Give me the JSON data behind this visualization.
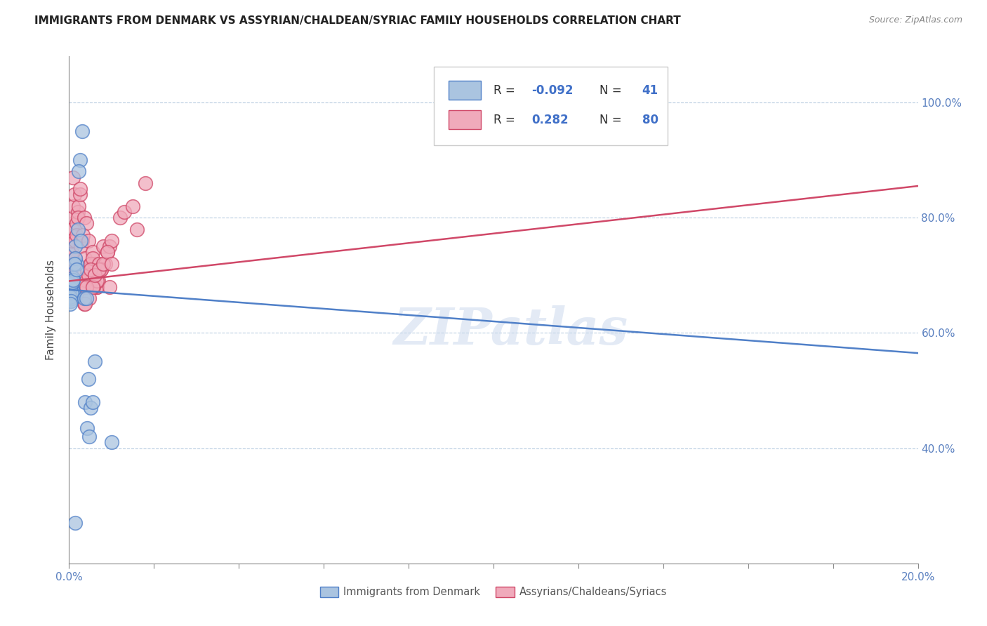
{
  "title": "IMMIGRANTS FROM DENMARK VS ASSYRIAN/CHALDEAN/SYRIAC FAMILY HOUSEHOLDS CORRELATION CHART",
  "source": "Source: ZipAtlas.com",
  "ylabel": "Family Households",
  "ylabel_right_ticks": [
    "40.0%",
    "60.0%",
    "80.0%",
    "100.0%"
  ],
  "ylabel_right_vals": [
    0.4,
    0.6,
    0.8,
    1.0
  ],
  "legend_label1": "Immigrants from Denmark",
  "legend_label2": "Assyrians/Chaldeans/Syriacs",
  "blue_color": "#aac4e0",
  "pink_color": "#f0aabb",
  "blue_line_color": "#5080c8",
  "pink_line_color": "#d04868",
  "watermark_text": "ZIPatlas",
  "blue_scatter_x": [
    0.0008,
    0.001,
    0.0005,
    0.0006,
    0.0004,
    0.0003,
    0.0008,
    0.0012,
    0.001,
    0.0005,
    0.0007,
    0.0009,
    0.0005,
    0.0003,
    0.0002,
    0.0006,
    0.0008,
    0.001,
    0.0004,
    0.0003,
    0.0015,
    0.002,
    0.0018,
    0.0025,
    0.0022,
    0.003,
    0.0028,
    0.0015,
    0.0012,
    0.0018,
    0.0035,
    0.004,
    0.0045,
    0.0038,
    0.005,
    0.0042,
    0.0055,
    0.0048,
    0.006,
    0.0015,
    0.01
  ],
  "blue_scatter_y": [
    0.68,
    0.67,
    0.665,
    0.672,
    0.66,
    0.668,
    0.675,
    0.663,
    0.671,
    0.659,
    0.69,
    0.695,
    0.685,
    0.678,
    0.662,
    0.67,
    0.688,
    0.692,
    0.655,
    0.65,
    0.75,
    0.78,
    0.72,
    0.9,
    0.88,
    0.95,
    0.76,
    0.73,
    0.72,
    0.71,
    0.66,
    0.66,
    0.52,
    0.48,
    0.47,
    0.435,
    0.48,
    0.42,
    0.55,
    0.27,
    0.41
  ],
  "pink_scatter_x": [
    0.0003,
    0.0005,
    0.0007,
    0.0004,
    0.0006,
    0.0008,
    0.0005,
    0.0003,
    0.0006,
    0.0009,
    0.0004,
    0.0007,
    0.0008,
    0.0005,
    0.0003,
    0.001,
    0.0012,
    0.0008,
    0.0006,
    0.0004,
    0.0015,
    0.0018,
    0.002,
    0.0022,
    0.0025,
    0.0015,
    0.0018,
    0.0012,
    0.002,
    0.0025,
    0.003,
    0.0035,
    0.0028,
    0.004,
    0.0032,
    0.0045,
    0.0038,
    0.005,
    0.0042,
    0.0055,
    0.0048,
    0.006,
    0.0052,
    0.0065,
    0.0035,
    0.004,
    0.0045,
    0.005,
    0.003,
    0.0035,
    0.0055,
    0.006,
    0.0065,
    0.007,
    0.0075,
    0.008,
    0.0068,
    0.0058,
    0.0048,
    0.0038,
    0.009,
    0.0085,
    0.0075,
    0.0065,
    0.0095,
    0.01,
    0.0095,
    0.004,
    0.005,
    0.0055,
    0.006,
    0.007,
    0.008,
    0.009,
    0.01,
    0.012,
    0.013,
    0.015,
    0.016,
    0.018
  ],
  "pink_scatter_y": [
    0.68,
    0.72,
    0.76,
    0.7,
    0.74,
    0.8,
    0.68,
    0.66,
    0.74,
    0.82,
    0.7,
    0.76,
    0.78,
    0.72,
    0.66,
    0.87,
    0.84,
    0.78,
    0.76,
    0.7,
    0.76,
    0.79,
    0.81,
    0.82,
    0.84,
    0.73,
    0.77,
    0.71,
    0.8,
    0.85,
    0.76,
    0.8,
    0.75,
    0.79,
    0.77,
    0.76,
    0.73,
    0.72,
    0.71,
    0.74,
    0.7,
    0.72,
    0.69,
    0.68,
    0.67,
    0.69,
    0.7,
    0.72,
    0.68,
    0.65,
    0.73,
    0.7,
    0.68,
    0.72,
    0.71,
    0.75,
    0.69,
    0.68,
    0.66,
    0.65,
    0.74,
    0.72,
    0.71,
    0.69,
    0.75,
    0.76,
    0.68,
    0.68,
    0.71,
    0.68,
    0.7,
    0.71,
    0.72,
    0.74,
    0.72,
    0.8,
    0.81,
    0.82,
    0.78,
    0.86
  ],
  "blue_trendline": [
    0.675,
    0.565
  ],
  "pink_trendline": [
    0.69,
    0.855
  ],
  "xlim": [
    0.0,
    0.2
  ],
  "ylim": [
    0.2,
    1.08
  ],
  "xtick_positions": [
    0.0,
    0.02,
    0.04,
    0.06,
    0.08,
    0.1,
    0.12,
    0.14,
    0.16,
    0.18,
    0.2
  ],
  "xtick_labels_show": [
    "0.0%",
    "",
    "",
    "",
    "",
    "",
    "",
    "",
    "",
    "",
    "20.0%"
  ]
}
